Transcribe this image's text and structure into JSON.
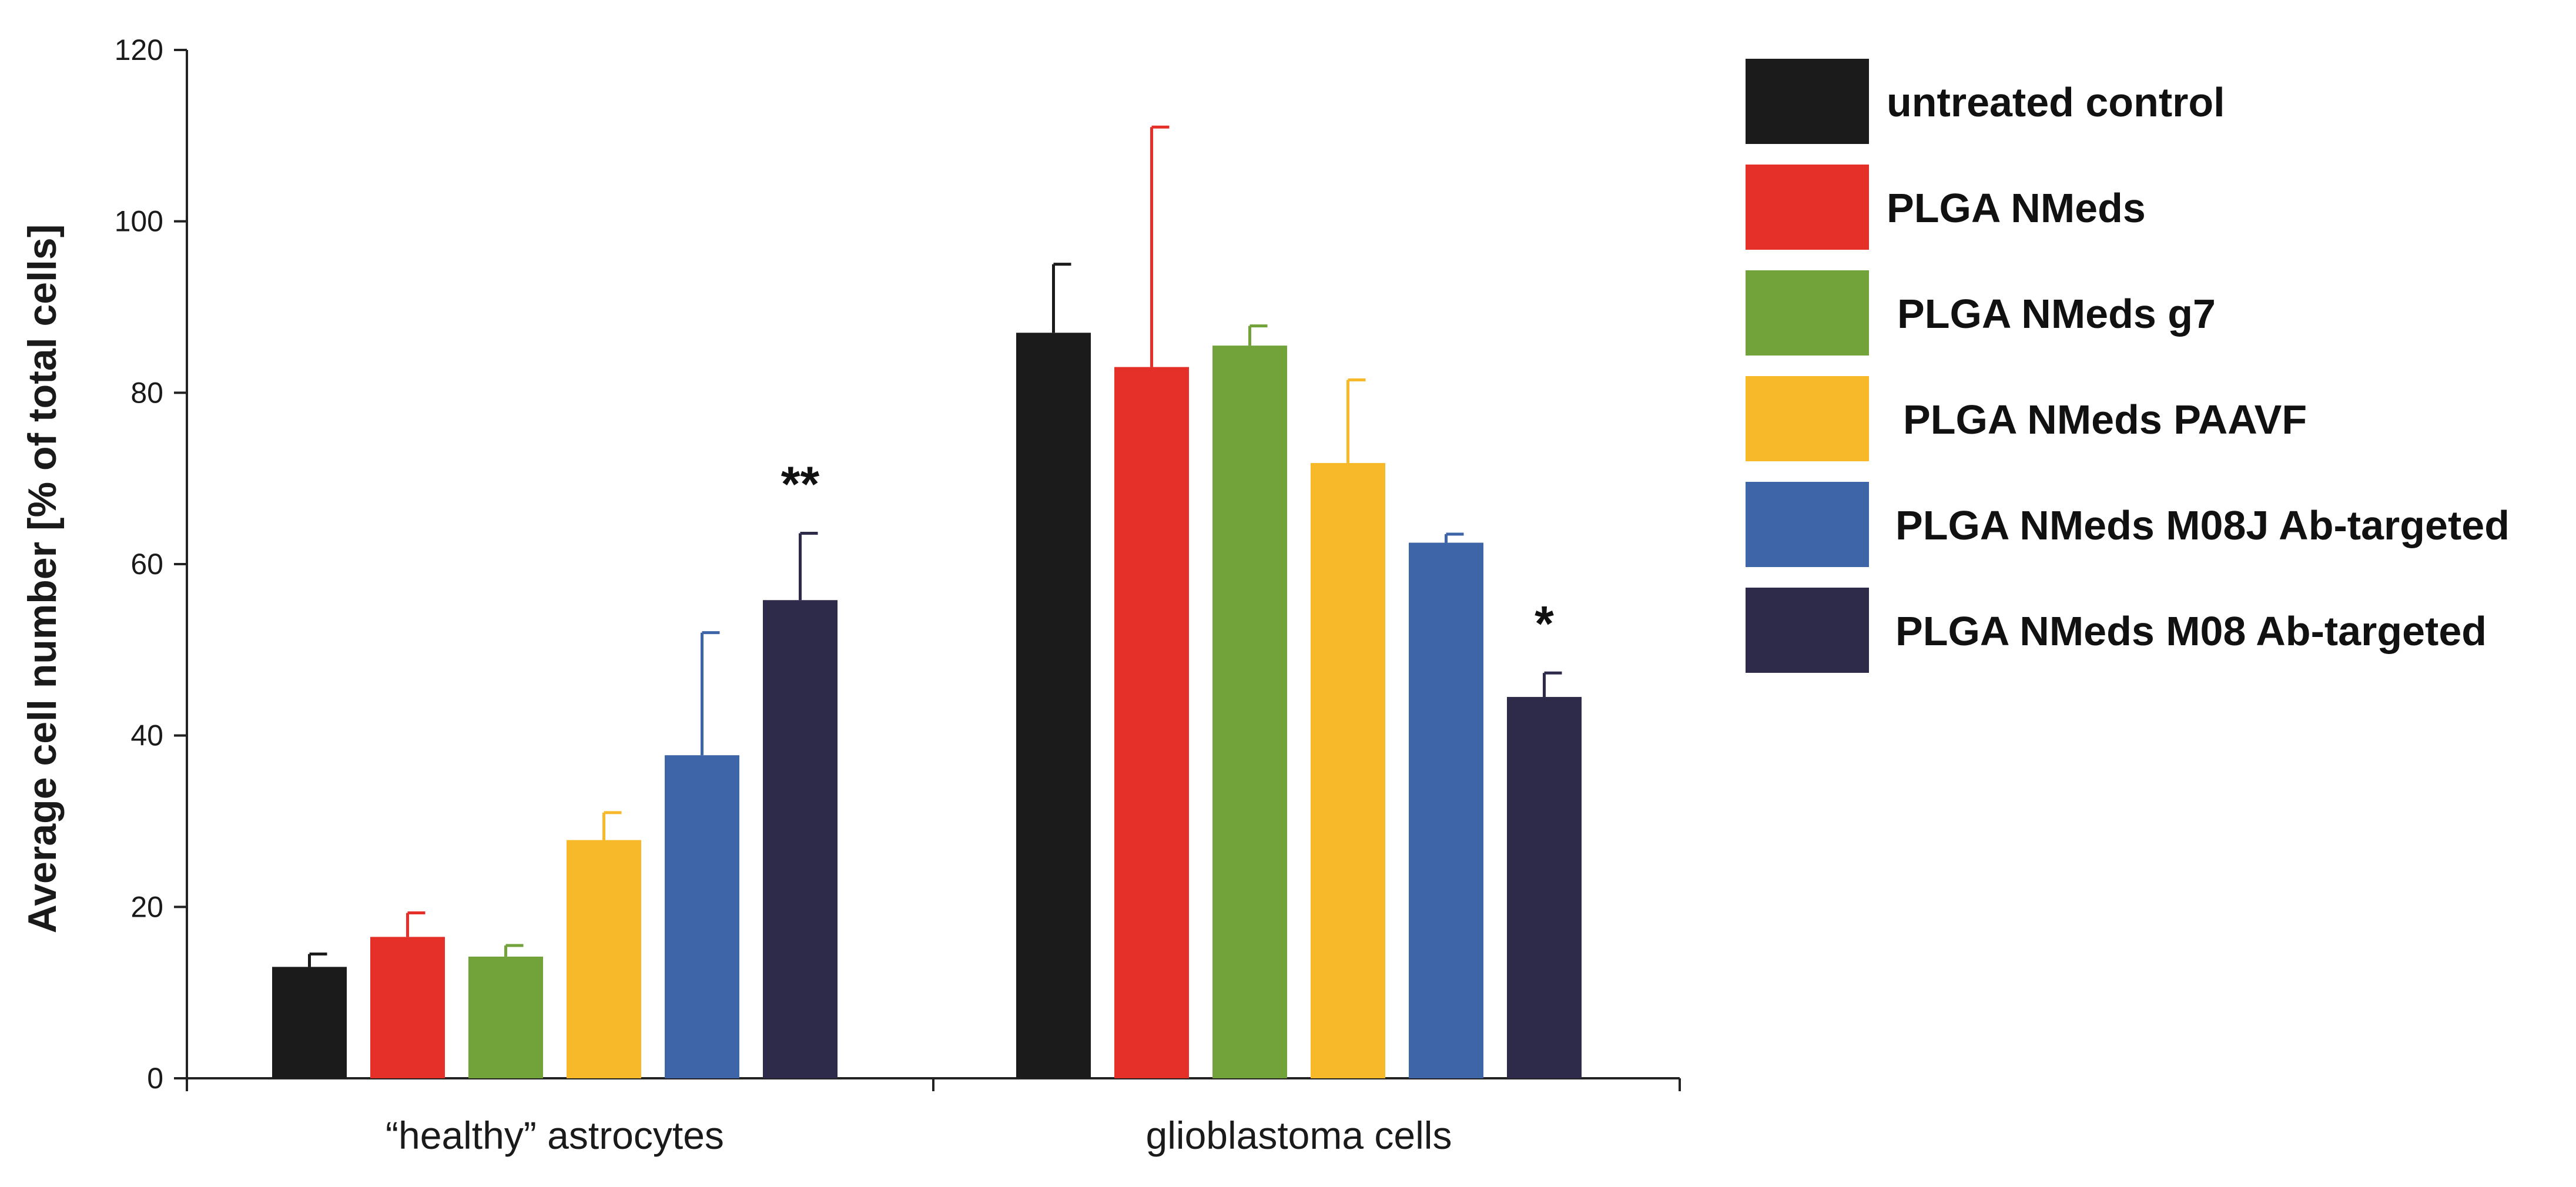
{
  "chart_data": {
    "type": "bar",
    "title": "",
    "xlabel": "",
    "ylabel": "Average cell number [% of total cells]",
    "ylim": [
      0,
      120
    ],
    "yticks": [
      0,
      20,
      40,
      60,
      80,
      100,
      120
    ],
    "grid": false,
    "legend_position": "right",
    "categories": [
      "“healthy” astrocytes",
      "glioblastoma cells"
    ],
    "series": [
      {
        "name": "untreated control",
        "color": "#1b1b1b",
        "values": [
          13,
          87
        ],
        "errors": [
          1.5,
          8
        ]
      },
      {
        "name": "PLGA NMeds",
        "color": "#e5302a",
        "values": [
          16.5,
          83
        ],
        "errors": [
          2.8,
          28
        ]
      },
      {
        "name": "PLGA NMeds g7",
        "color": "#72a33a",
        "values": [
          14.2,
          85.5
        ],
        "errors": [
          1.3,
          2.3
        ]
      },
      {
        "name": "PLGA NMeds PAAVF",
        "color": "#f7b92a",
        "values": [
          27.8,
          71.8
        ],
        "errors": [
          3.2,
          9.7
        ]
      },
      {
        "name": "PLGA NMeds M08J Ab-targeted",
        "color": "#3e65a8",
        "values": [
          37.7,
          62.5
        ],
        "errors": [
          14.3,
          1
        ]
      },
      {
        "name": "PLGA NMeds M08 Ab-targeted",
        "color": "#2e2a4a",
        "values": [
          55.8,
          44.5
        ],
        "errors": [
          7.8,
          2.8
        ]
      }
    ],
    "annotations": [
      {
        "text": "**",
        "category": 0,
        "series": 5
      },
      {
        "text": "*",
        "category": 1,
        "series": 5
      }
    ]
  }
}
